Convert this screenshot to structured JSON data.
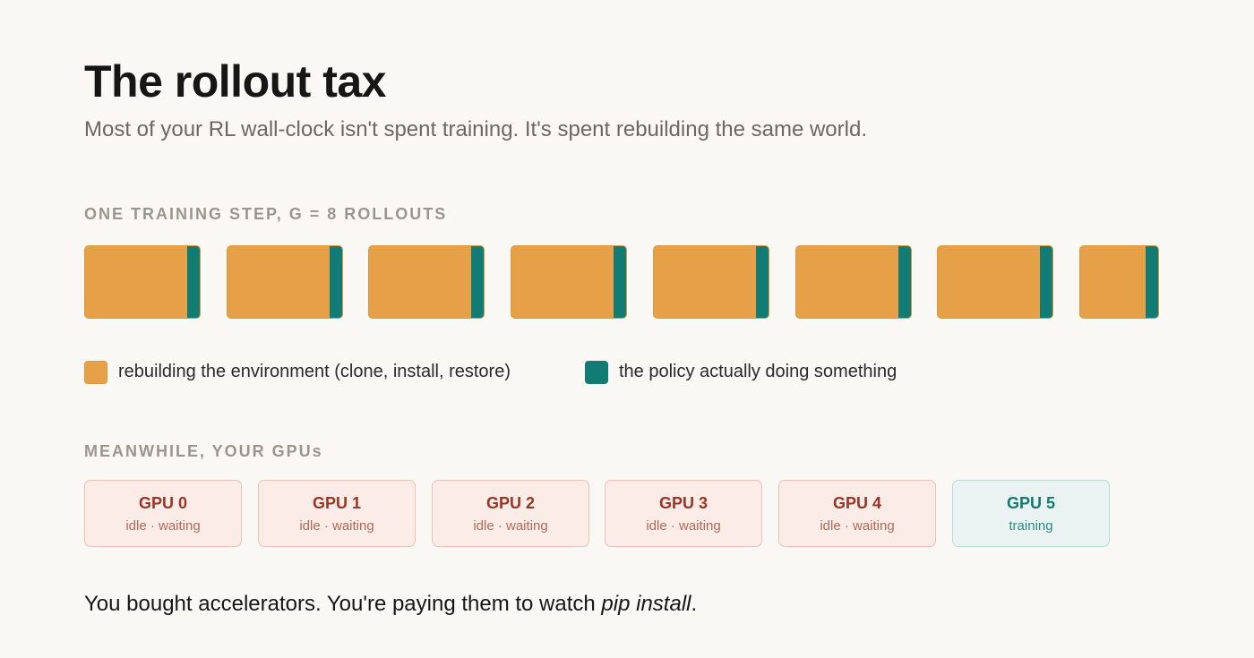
{
  "header": {
    "title": "The rollout tax",
    "subtitle": "Most of your RL wall-clock isn't spent training. It's spent rebuilding the same world."
  },
  "step_section": {
    "label": "ONE TRAINING STEP, G = 8 ROLLOUTS",
    "rollout_count": 8
  },
  "legend": {
    "env_label": "rebuilding the environment (clone, install, restore)",
    "policy_label": "the policy actually doing something"
  },
  "gpu_section": {
    "label": "MEANWHILE, YOUR GPUs",
    "gpus": [
      {
        "name": "GPU 0",
        "status": "idle · waiting",
        "state": "idle"
      },
      {
        "name": "GPU 1",
        "status": "idle · waiting",
        "state": "idle"
      },
      {
        "name": "GPU 2",
        "status": "idle · waiting",
        "state": "idle"
      },
      {
        "name": "GPU 3",
        "status": "idle · waiting",
        "state": "idle"
      },
      {
        "name": "GPU 4",
        "status": "idle · waiting",
        "state": "idle"
      },
      {
        "name": "GPU 5",
        "status": "training",
        "state": "training"
      }
    ]
  },
  "closing": {
    "text_prefix": "You bought accelerators. You're paying them to watch ",
    "text_emphasis": "pip install",
    "text_suffix": "."
  },
  "colors": {
    "env": "#e6a148",
    "policy": "#127c74",
    "idle_text": "#9b3422",
    "training_text": "#117a72"
  }
}
